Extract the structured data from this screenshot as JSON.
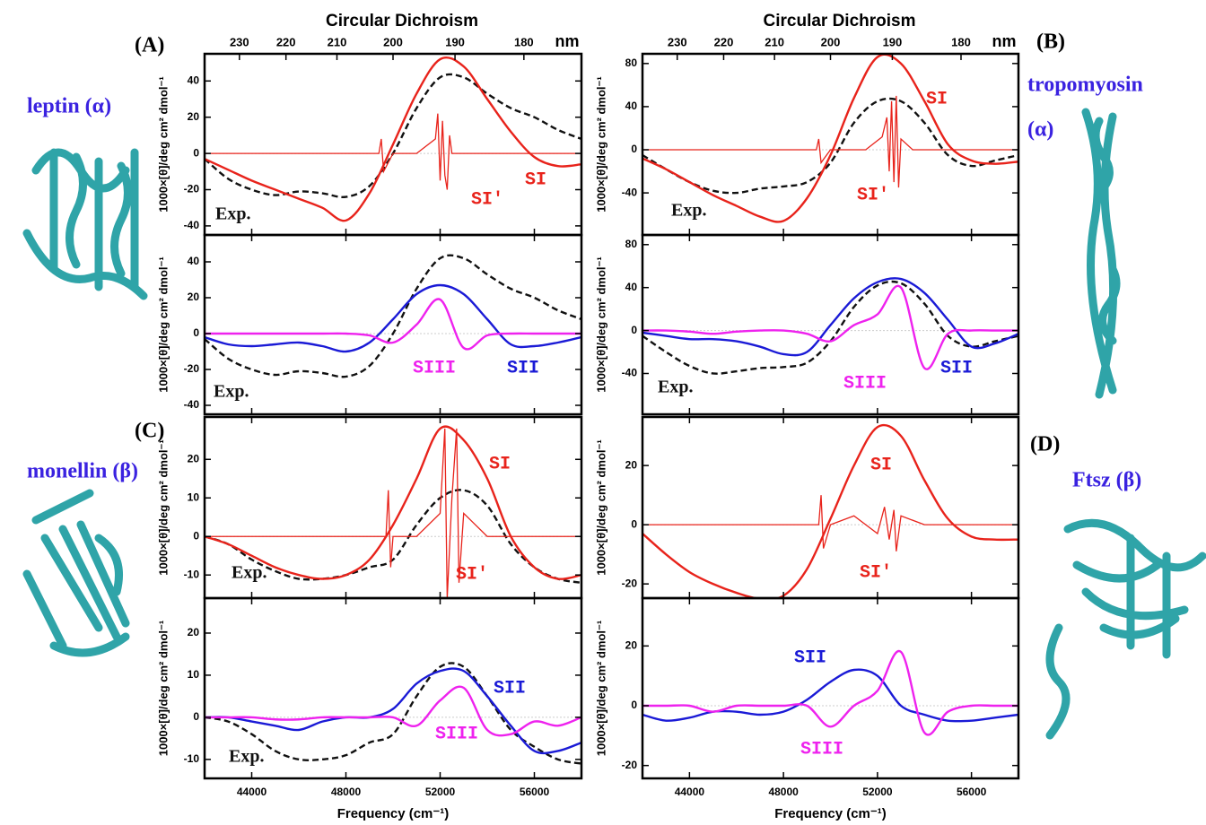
{
  "panels": [
    {
      "label": "(A)",
      "name_lines": [
        "leptin (α)"
      ]
    },
    {
      "label": "(B)",
      "name_lines": [
        "tropomyosin",
        "(α)"
      ]
    },
    {
      "label": "(C)",
      "name_lines": [
        "monellin (β)"
      ]
    },
    {
      "label": "(D)",
      "name_lines": [
        "Ftsz (β)"
      ]
    }
  ],
  "chart_data": [
    {
      "type": "line",
      "title": "Circular Dichroism",
      "x2label": "nm",
      "x2ticks": [
        230,
        220,
        210,
        200,
        190,
        180
      ],
      "ylabel": "1000×[θ]/deg cm² dmol⁻¹",
      "xlim": [
        42000,
        58000
      ],
      "xticks": [
        44000,
        48000,
        52000,
        56000
      ],
      "ylim": [
        -45,
        55
      ],
      "yticks": [
        -40,
        -20,
        0,
        20,
        40
      ],
      "x": [
        42000,
        43000,
        44000,
        45000,
        46000,
        47000,
        48000,
        49000,
        50000,
        51000,
        52000,
        53000,
        54000,
        55000,
        56000,
        57000,
        58000
      ],
      "series": [
        {
          "name": "Exp.",
          "color": "#111111",
          "dashed": true,
          "values": [
            -3,
            -14,
            -20,
            -23,
            -21,
            -22,
            -24,
            -18,
            0,
            25,
            42,
            42,
            33,
            25,
            20,
            13,
            8
          ]
        },
        {
          "name": "SI",
          "color": "#e8231b",
          "values": [
            -3,
            -9,
            -15,
            -20,
            -25,
            -30,
            -37,
            -22,
            5,
            33,
            52,
            48,
            30,
            12,
            -2,
            -7,
            -6
          ]
        },
        {
          "name": "SI′",
          "color": "#e8231b",
          "x": [
            42000,
            49400,
            49500,
            49600,
            50000,
            51000,
            51800,
            51900,
            52000,
            52100,
            52200,
            52300,
            52400,
            52500,
            53000,
            58000
          ],
          "values": [
            0,
            0,
            8,
            -10,
            0,
            0,
            8,
            22,
            -15,
            18,
            -12,
            -20,
            10,
            0,
            0,
            0
          ]
        }
      ]
    },
    {
      "type": "line",
      "ylabel": "1000×[θ]/deg cm² dmol⁻¹",
      "xlim": [
        42000,
        58000
      ],
      "xticks": [
        44000,
        48000,
        52000,
        56000
      ],
      "ylim": [
        -45,
        55
      ],
      "yticks": [
        -40,
        -20,
        0,
        20,
        40
      ],
      "x": [
        42000,
        43000,
        44000,
        45000,
        46000,
        47000,
        48000,
        49000,
        50000,
        51000,
        52000,
        53000,
        54000,
        55000,
        56000,
        57000,
        58000
      ],
      "series": [
        {
          "name": "Exp.",
          "color": "#111111",
          "dashed": true,
          "values": [
            -3,
            -14,
            -20,
            -23,
            -21,
            -22,
            -24,
            -18,
            0,
            25,
            42,
            42,
            33,
            25,
            20,
            13,
            8
          ]
        },
        {
          "name": "SII",
          "color": "#1a1ad6",
          "values": [
            -2,
            -6,
            -7,
            -6,
            -5,
            -7,
            -10,
            -5,
            8,
            22,
            27,
            22,
            8,
            -6,
            -7,
            -5,
            -2
          ]
        },
        {
          "name": "SIII",
          "color": "#ee22ee",
          "values": [
            0,
            0,
            0,
            0,
            0,
            0,
            0,
            -1,
            -5,
            5,
            19,
            -8,
            -1,
            0,
            0,
            0,
            0
          ]
        }
      ]
    },
    {
      "type": "line",
      "title": "Circular Dichroism",
      "x2label": "nm",
      "x2ticks": [
        230,
        220,
        210,
        200,
        190,
        180
      ],
      "ylabel": "1000×[θ]/deg cm² dmol⁻¹",
      "xlim": [
        42000,
        58000
      ],
      "xticks": [
        44000,
        48000,
        52000,
        56000
      ],
      "ylim": [
        -79,
        89
      ],
      "yticks": [
        -40,
        0,
        40,
        80
      ],
      "x": [
        42000,
        43000,
        44000,
        45000,
        46000,
        47000,
        48000,
        49000,
        50000,
        51000,
        52000,
        53000,
        54000,
        55000,
        56000,
        57000,
        58000
      ],
      "series": [
        {
          "name": "Exp.",
          "color": "#111111",
          "dashed": true,
          "values": [
            -5,
            -18,
            -30,
            -38,
            -40,
            -36,
            -34,
            -30,
            -12,
            25,
            45,
            45,
            25,
            -5,
            -15,
            -10,
            -5
          ]
        },
        {
          "name": "SI",
          "color": "#e8231b",
          "values": [
            -8,
            -18,
            -30,
            -42,
            -52,
            -62,
            -66,
            -45,
            -5,
            48,
            86,
            80,
            45,
            5,
            -10,
            -13,
            -11
          ]
        },
        {
          "name": "SI′",
          "color": "#e8231b",
          "x": [
            42000,
            49400,
            49500,
            49600,
            50000,
            51500,
            52200,
            52400,
            52500,
            52600,
            52700,
            52800,
            52900,
            53000,
            53500,
            58000
          ],
          "values": [
            0,
            0,
            10,
            -12,
            0,
            0,
            12,
            30,
            -20,
            45,
            -30,
            50,
            -35,
            10,
            0,
            0
          ]
        }
      ]
    },
    {
      "type": "line",
      "ylabel": "1000×[θ]/deg cm² dmol⁻¹",
      "xlim": [
        42000,
        58000
      ],
      "xticks": [
        44000,
        48000,
        52000,
        56000
      ],
      "ylim": [
        -78,
        89
      ],
      "yticks": [
        -40,
        0,
        40,
        80
      ],
      "x": [
        42000,
        43000,
        44000,
        45000,
        46000,
        47000,
        48000,
        49000,
        50000,
        51000,
        52000,
        53000,
        54000,
        55000,
        56000,
        57000,
        58000
      ],
      "series": [
        {
          "name": "Exp.",
          "color": "#111111",
          "dashed": true,
          "values": [
            -5,
            -20,
            -33,
            -40,
            -38,
            -35,
            -34,
            -30,
            -10,
            22,
            42,
            44,
            25,
            -5,
            -15,
            -10,
            -5
          ]
        },
        {
          "name": "SII",
          "color": "#1a1ad6",
          "values": [
            -2,
            -5,
            -8,
            -8,
            -10,
            -15,
            -22,
            -20,
            5,
            30,
            45,
            48,
            35,
            10,
            -15,
            -12,
            -3
          ]
        },
        {
          "name": "SIII",
          "color": "#ee22ee",
          "values": [
            0,
            0,
            -1,
            -3,
            -1,
            0,
            0,
            -3,
            -10,
            5,
            15,
            40,
            -35,
            -3,
            0,
            0,
            0
          ]
        }
      ]
    },
    {
      "type": "line",
      "ylabel": "1000×[θ]/deg cm² dmol⁻¹",
      "xlim": [
        42000,
        58000
      ],
      "xticks": [
        44000,
        48000,
        52000,
        56000
      ],
      "ylim": [
        -16,
        31
      ],
      "yticks": [
        -10,
        0,
        10,
        20
      ],
      "x": [
        42000,
        43000,
        44000,
        45000,
        46000,
        47000,
        48000,
        49000,
        50000,
        51000,
        52000,
        53000,
        54000,
        55000,
        56000,
        57000,
        58000
      ],
      "series": [
        {
          "name": "Exp.",
          "color": "#111111",
          "dashed": true,
          "values": [
            0,
            -2,
            -6,
            -9,
            -11,
            -11,
            -10,
            -8,
            -6,
            3,
            10,
            12,
            8,
            -2,
            -8,
            -11,
            -12
          ]
        },
        {
          "name": "SI",
          "color": "#e8231b",
          "values": [
            0,
            -2,
            -5,
            -8,
            -10,
            -11,
            -10,
            -6,
            3,
            15,
            28,
            25,
            15,
            0,
            -8,
            -11,
            -10
          ]
        },
        {
          "name": "SI′",
          "color": "#e8231b",
          "x": [
            42000,
            49700,
            49800,
            49900,
            50000,
            51000,
            52000,
            52200,
            52300,
            52500,
            52700,
            52800,
            53000,
            54000,
            58000
          ],
          "values": [
            0,
            0,
            12,
            -8,
            0,
            0,
            6,
            28,
            -16,
            10,
            28,
            -12,
            6,
            0,
            0
          ]
        }
      ]
    },
    {
      "type": "line",
      "ylabel": "1000×[θ]/deg cm² dmol⁻¹",
      "xlabel": "Frequency (cm⁻¹)",
      "xlim": [
        42000,
        58000
      ],
      "xticks": [
        44000,
        48000,
        52000,
        56000
      ],
      "ylim": [
        -14.5,
        28.3
      ],
      "yticks": [
        -10,
        0,
        10,
        20
      ],
      "x": [
        42000,
        43000,
        44000,
        45000,
        46000,
        47000,
        48000,
        49000,
        50000,
        51000,
        52000,
        53000,
        54000,
        55000,
        56000,
        57000,
        58000
      ],
      "series": [
        {
          "name": "Exp.",
          "color": "#111111",
          "dashed": true,
          "values": [
            0,
            -1,
            -4,
            -8,
            -10,
            -10,
            -9,
            -6,
            -4,
            5,
            12,
            12,
            5,
            -3,
            -7,
            -10,
            -11
          ]
        },
        {
          "name": "SII",
          "color": "#1a1ad6",
          "values": [
            0,
            0,
            -1,
            -2,
            -3,
            -1,
            0,
            0,
            2,
            8,
            11,
            11,
            5,
            -2,
            -8,
            -8,
            -6
          ]
        },
        {
          "name": "SIII",
          "color": "#ee22ee",
          "values": [
            0,
            0,
            0,
            -0.5,
            -0.5,
            0,
            0,
            0,
            0,
            -2,
            4,
            7,
            -3,
            -4,
            -1,
            -2,
            0
          ]
        }
      ]
    },
    {
      "type": "line",
      "ylabel": "1000×[θ]/deg cm² dmol⁻¹",
      "xlim": [
        42000,
        58000
      ],
      "xticks": [
        44000,
        48000,
        52000,
        56000
      ],
      "ylim": [
        -24.8,
        36.4
      ],
      "yticks": [
        -20,
        0,
        20
      ],
      "x": [
        42000,
        43000,
        44000,
        45000,
        46000,
        47000,
        48000,
        49000,
        50000,
        51000,
        52000,
        53000,
        54000,
        55000,
        56000,
        57000,
        58000
      ],
      "series": [
        {
          "name": "SI",
          "color": "#e8231b",
          "values": [
            -3,
            -10,
            -16,
            -20,
            -23,
            -25,
            -24,
            -15,
            2,
            20,
            33,
            30,
            15,
            2,
            -4,
            -5,
            -5
          ]
        },
        {
          "name": "SI′",
          "color": "#e8231b",
          "x": [
            42000,
            49500,
            49600,
            49700,
            50000,
            51000,
            52000,
            52300,
            52500,
            52700,
            52800,
            53000,
            54000,
            58000
          ],
          "values": [
            0,
            0,
            10,
            -8,
            0,
            3,
            -3,
            6,
            -5,
            5,
            -9,
            3,
            0,
            0
          ]
        }
      ]
    },
    {
      "type": "line",
      "ylabel": "1000×[θ]/deg cm² dmol⁻¹",
      "xlabel": "Frequency (cm⁻¹)",
      "xlim": [
        42000,
        58000
      ],
      "xticks": [
        44000,
        48000,
        52000,
        56000
      ],
      "ylim": [
        -24.3,
        36
      ],
      "yticks": [
        -20,
        0,
        20
      ],
      "x": [
        42000,
        43000,
        44000,
        45000,
        46000,
        47000,
        48000,
        49000,
        50000,
        51000,
        52000,
        53000,
        54000,
        55000,
        56000,
        57000,
        58000
      ],
      "series": [
        {
          "name": "SII",
          "color": "#1a1ad6",
          "values": [
            -3,
            -5,
            -4,
            -2,
            -2,
            -3,
            -2,
            2,
            8,
            12,
            10,
            0,
            -3,
            -5,
            -5,
            -4,
            -3
          ]
        },
        {
          "name": "SIII",
          "color": "#ee22ee",
          "values": [
            0,
            0,
            0,
            -2,
            0,
            0,
            0,
            0,
            -7,
            0,
            5,
            18,
            -9,
            -2,
            0,
            0,
            0
          ]
        }
      ]
    }
  ]
}
